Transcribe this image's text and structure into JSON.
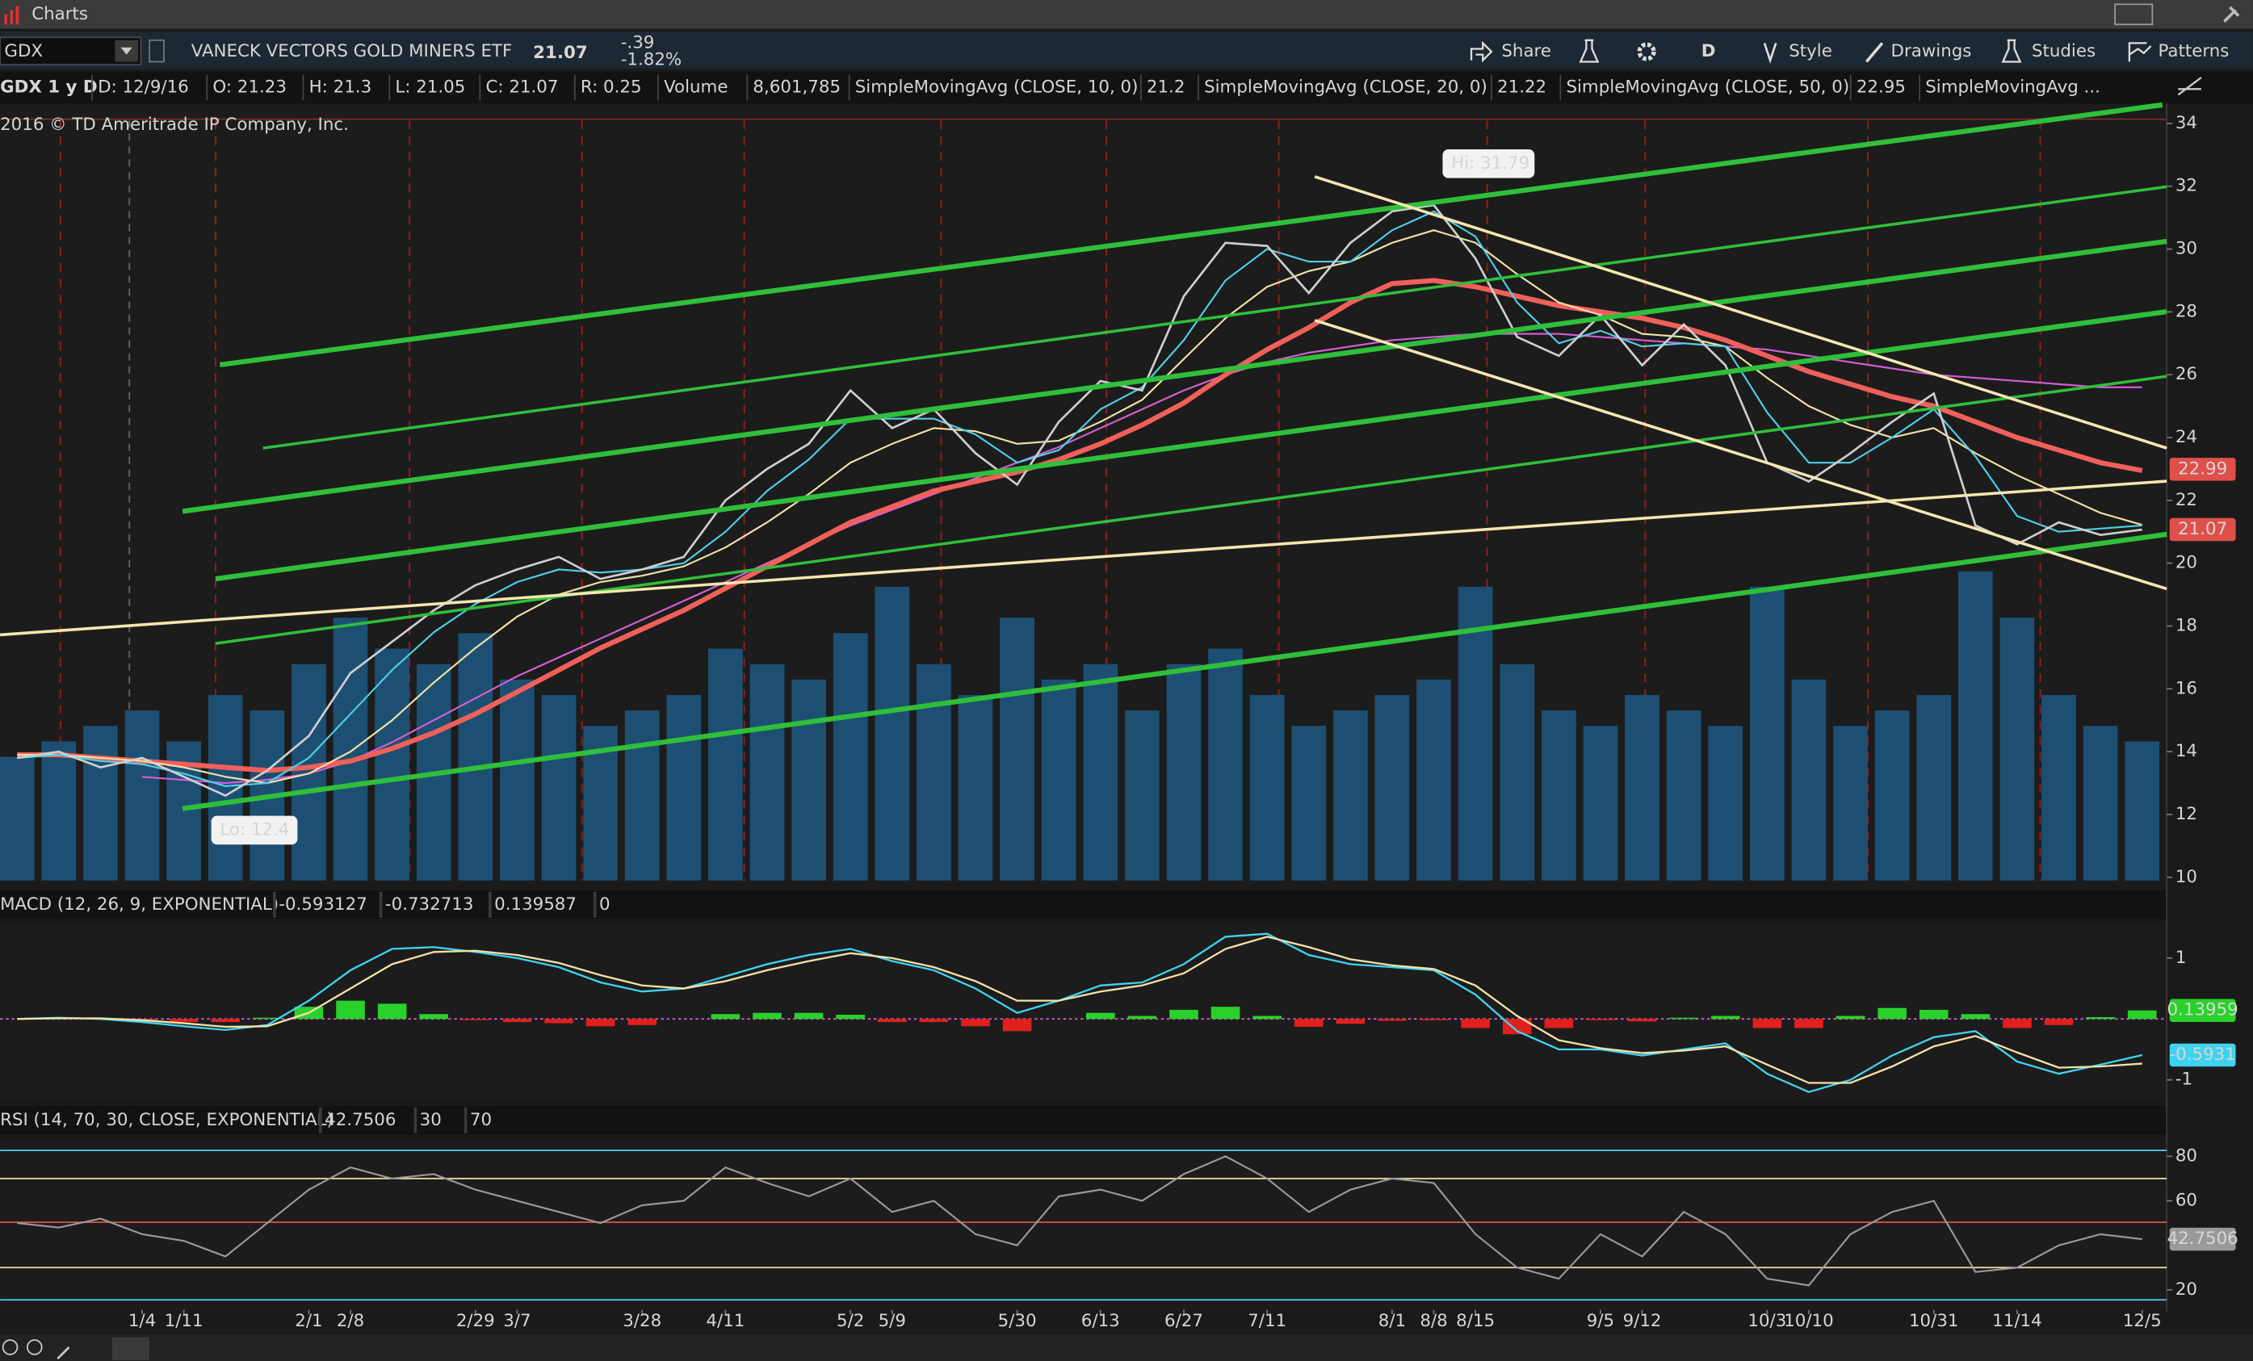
{
  "window": {
    "title": "Charts"
  },
  "toolbar": {
    "symbol": "GDX",
    "description": "VANECK VECTORS GOLD MINERS ETF",
    "last": "21.07",
    "change": "-.39",
    "change_pct": "-1.82%",
    "buttons": [
      "Share",
      "D",
      "Style",
      "Drawings",
      "Studies",
      "Patterns"
    ]
  },
  "info": {
    "chart_label": "GDX 1 y D",
    "fields": [
      "D: 12/9/16",
      "O: 21.23",
      "H: 21.3",
      "L: 21.05",
      "C: 21.07",
      "R: 0.25"
    ],
    "volume_label": "Volume",
    "volume_value": "8,601,785"
  },
  "copyright": "2016 © TD Ameritrade IP Company, Inc.",
  "chart_data": [
    {
      "type": "line",
      "x": [
        -3,
        -2,
        -1,
        0,
        1,
        2,
        3,
        4,
        5,
        6,
        7,
        8,
        9,
        10,
        11,
        12,
        13,
        14,
        15,
        16,
        17,
        18,
        19,
        20,
        21,
        22,
        23,
        24,
        25,
        26,
        27,
        28,
        29,
        30,
        31,
        32,
        33,
        34,
        35,
        36,
        37,
        38,
        39,
        40,
        41,
        42,
        43,
        44,
        45,
        46,
        47,
        48
      ],
      "xlim": [
        -3.41,
        48.59
      ],
      "xticks": [
        {
          "value": 0,
          "label": "1/4"
        },
        {
          "value": 1,
          "label": "1/11"
        },
        {
          "value": 4,
          "label": "2/1"
        },
        {
          "value": 5,
          "label": "2/8"
        },
        {
          "value": 8,
          "label": "2/29"
        },
        {
          "value": 9,
          "label": "3/7"
        },
        {
          "value": 12,
          "label": "3/28"
        },
        {
          "value": 14,
          "label": "4/11"
        },
        {
          "value": 17,
          "label": "5/2"
        },
        {
          "value": 18,
          "label": "5/9"
        },
        {
          "value": 21,
          "label": "5/30"
        },
        {
          "value": 23,
          "label": "6/13"
        },
        {
          "value": 25,
          "label": "6/27"
        },
        {
          "value": 27,
          "label": "7/11"
        },
        {
          "value": 30,
          "label": "8/1"
        },
        {
          "value": 31,
          "label": "8/8"
        },
        {
          "value": 32,
          "label": "8/15"
        },
        {
          "value": 35,
          "label": "9/5"
        },
        {
          "value": 36,
          "label": "9/12"
        },
        {
          "value": 39,
          "label": "10/3"
        },
        {
          "value": 40,
          "label": "10/10"
        },
        {
          "value": 43,
          "label": "10/31"
        },
        {
          "value": 45,
          "label": "11/14"
        },
        {
          "value": 48,
          "label": "12/5"
        }
      ],
      "ylim": [
        9.9,
        34.5
      ],
      "yticks": [
        10,
        12,
        14,
        16,
        18,
        20,
        22,
        24,
        26,
        28,
        30,
        32,
        34
      ],
      "close": {
        "color": "#cfcfcf",
        "values": [
          13.8,
          14.0,
          13.5,
          13.8,
          13.2,
          12.6,
          13.4,
          14.5,
          16.5,
          17.5,
          18.5,
          19.3,
          19.8,
          20.2,
          19.5,
          19.8,
          20.2,
          22.0,
          23.0,
          23.8,
          25.5,
          24.3,
          24.9,
          23.5,
          22.5,
          24.5,
          25.8,
          25.5,
          28.5,
          30.2,
          30.1,
          28.6,
          30.2,
          31.2,
          31.4,
          29.7,
          27.2,
          26.6,
          27.9,
          26.3,
          27.6,
          26.3,
          23.2,
          22.6,
          23.5,
          24.5,
          25.4,
          21.2,
          20.6,
          21.3,
          20.9,
          21.07
        ]
      },
      "volume": {
        "color": "#1d4f73",
        "ylim": [
          0,
          250
        ],
        "values": [
          40,
          45,
          50,
          55,
          45,
          60,
          55,
          70,
          85,
          75,
          70,
          80,
          65,
          60,
          50,
          55,
          60,
          75,
          70,
          65,
          80,
          95,
          70,
          60,
          85,
          65,
          70,
          55,
          70,
          75,
          60,
          50,
          55,
          60,
          65,
          95,
          70,
          55,
          50,
          60,
          55,
          50,
          95,
          65,
          50,
          55,
          60,
          100,
          85,
          60,
          50,
          45
        ]
      },
      "series": [
        {
          "name": "SimpleMovingAvg ...",
          "color": "#d45fd4",
          "width": 1.2,
          "values": [
            null,
            null,
            null,
            13.2,
            13.1,
            13.0,
            13.1,
            13.3,
            13.7,
            14.3,
            15.0,
            15.7,
            16.4,
            17.0,
            17.6,
            18.2,
            18.8,
            19.4,
            20.0,
            20.6,
            21.2,
            21.7,
            22.2,
            22.7,
            23.2,
            23.7,
            24.3,
            24.9,
            25.5,
            26.0,
            26.4,
            26.7,
            26.9,
            27.1,
            27.2,
            27.3,
            27.3,
            27.3,
            27.2,
            27.1,
            27.0,
            26.9,
            26.8,
            26.6,
            26.4,
            26.2,
            26.0,
            25.9,
            25.8,
            25.7,
            25.6,
            25.6
          ]
        },
        {
          "name": "SimpleMovingAvg (CLOSE, 50, 0)",
          "last": "22.95",
          "color": "#f0605a",
          "width": 3.5,
          "values": [
            13.9,
            13.9,
            13.8,
            13.7,
            13.6,
            13.5,
            13.4,
            13.5,
            13.7,
            14.1,
            14.6,
            15.2,
            15.9,
            16.6,
            17.3,
            17.9,
            18.5,
            19.2,
            19.9,
            20.6,
            21.3,
            21.8,
            22.3,
            22.6,
            22.9,
            23.3,
            23.8,
            24.4,
            25.1,
            26.0,
            26.8,
            27.5,
            28.3,
            28.9,
            29.0,
            28.8,
            28.5,
            28.2,
            28.0,
            27.8,
            27.5,
            27.1,
            26.6,
            26.1,
            25.7,
            25.3,
            25.0,
            24.5,
            24.0,
            23.6,
            23.2,
            22.95
          ]
        },
        {
          "name": "SimpleMovingAvg (CLOSE, 20, 0)",
          "last": "21.22",
          "color": "#f2e2a6",
          "width": 1.2,
          "values": [
            13.9,
            13.9,
            13.8,
            13.7,
            13.5,
            13.2,
            13.0,
            13.3,
            14.0,
            15.0,
            16.2,
            17.3,
            18.3,
            19.0,
            19.4,
            19.6,
            19.9,
            20.5,
            21.3,
            22.2,
            23.2,
            23.8,
            24.3,
            24.2,
            23.8,
            23.9,
            24.5,
            25.2,
            26.5,
            27.8,
            28.8,
            29.3,
            29.6,
            30.2,
            30.6,
            30.2,
            29.2,
            28.3,
            27.9,
            27.3,
            27.2,
            26.9,
            25.9,
            25.0,
            24.4,
            24.0,
            24.3,
            23.5,
            22.8,
            22.2,
            21.6,
            21.22
          ]
        },
        {
          "name": "SimpleMovingAvg (CLOSE, 10, 0)",
          "last": "21.2",
          "color": "#4fcfe8",
          "width": 1.2,
          "values": [
            13.8,
            13.9,
            13.7,
            13.6,
            13.3,
            12.9,
            13.0,
            13.8,
            15.2,
            16.6,
            17.8,
            18.7,
            19.4,
            19.8,
            19.7,
            19.8,
            20.0,
            21.0,
            22.3,
            23.3,
            24.6,
            24.6,
            24.6,
            24.1,
            23.2,
            23.6,
            24.9,
            25.6,
            27.1,
            29.0,
            30.0,
            29.6,
            29.6,
            30.6,
            31.2,
            30.4,
            28.3,
            27.0,
            27.4,
            26.9,
            27.0,
            26.9,
            24.8,
            23.2,
            23.2,
            24.0,
            24.9,
            23.4,
            21.5,
            21.0,
            21.1,
            21.2
          ]
        }
      ],
      "hi_label": "Hi: 31.79",
      "lo_label": "Lo: 12.4",
      "price_tags": [
        {
          "value": 22.99,
          "color": "#e0504a"
        },
        {
          "value": 21.07,
          "color": "#e0504a"
        }
      ]
    },
    {
      "type": "macd",
      "title": "MACD (12, 26, 9, EXPONENTIAL)",
      "header_values": [
        "-0.593127",
        "-0.732713",
        "0.139587"
      ],
      "zero_line": 0,
      "ylim": [
        -1.31,
        1.52
      ],
      "yticks": [
        1,
        -1
      ],
      "series": [
        {
          "color": "#3fd3f0",
          "values": [
            0.0,
            0.02,
            0.0,
            -0.05,
            -0.12,
            -0.18,
            -0.1,
            0.3,
            0.8,
            1.15,
            1.18,
            1.1,
            1.0,
            0.85,
            0.6,
            0.45,
            0.5,
            0.7,
            0.9,
            1.05,
            1.15,
            0.95,
            0.8,
            0.5,
            0.1,
            0.3,
            0.55,
            0.6,
            0.9,
            1.35,
            1.4,
            1.05,
            0.9,
            0.85,
            0.8,
            0.4,
            -0.2,
            -0.5,
            -0.5,
            -0.6,
            -0.5,
            -0.4,
            -0.9,
            -1.2,
            -1.0,
            -0.6,
            -0.3,
            -0.2,
            -0.7,
            -0.9,
            -0.75,
            -0.593127
          ]
        },
        {
          "color": "#f2e2a6",
          "values": [
            0.0,
            0.01,
            0.01,
            -0.02,
            -0.07,
            -0.13,
            -0.12,
            0.1,
            0.5,
            0.9,
            1.1,
            1.12,
            1.05,
            0.92,
            0.72,
            0.55,
            0.5,
            0.62,
            0.8,
            0.95,
            1.08,
            1.0,
            0.85,
            0.62,
            0.3,
            0.3,
            0.45,
            0.55,
            0.75,
            1.15,
            1.35,
            1.18,
            0.98,
            0.88,
            0.82,
            0.55,
            0.05,
            -0.35,
            -0.48,
            -0.56,
            -0.52,
            -0.45,
            -0.75,
            -1.05,
            -1.05,
            -0.78,
            -0.45,
            -0.28,
            -0.55,
            -0.8,
            -0.78,
            -0.732713
          ]
        }
      ],
      "histogram": {
        "up_color": "#2bd12b",
        "down_color": "#e0201c",
        "values": [
          0,
          0.01,
          -0.01,
          -0.03,
          -0.05,
          -0.05,
          0.02,
          0.2,
          0.3,
          0.25,
          0.08,
          -0.02,
          -0.05,
          -0.07,
          -0.12,
          -0.1,
          0,
          0.08,
          0.1,
          0.1,
          0.07,
          -0.05,
          -0.05,
          -0.12,
          -0.2,
          0,
          0.1,
          0.05,
          0.15,
          0.2,
          0.05,
          -0.13,
          -0.08,
          -0.03,
          -0.02,
          -0.15,
          -0.25,
          -0.15,
          -0.02,
          -0.04,
          0.02,
          0.05,
          -0.15,
          -0.15,
          0.05,
          0.18,
          0.15,
          0.08,
          -0.15,
          -0.1,
          0.03,
          0.139587
        ]
      },
      "badges": [
        {
          "value": 0.13959,
          "color": "#2bd12b"
        },
        {
          "value": -0.5931,
          "color": "#3fd3f0"
        }
      ]
    },
    {
      "type": "rsi",
      "title": "RSI (14, 70, 30, CLOSE, EXPONENTIAL)",
      "header_value": "42.7506",
      "oversold": 30,
      "overbought": 70,
      "ylim": [
        11,
        86.5
      ],
      "yticks": [
        20,
        60,
        80
      ],
      "series": [
        {
          "color": "#9a9a9a",
          "values": [
            50,
            48,
            52,
            45,
            42,
            35,
            50,
            65,
            75,
            70,
            72,
            65,
            60,
            55,
            50,
            58,
            60,
            75,
            68,
            62,
            70,
            55,
            60,
            45,
            40,
            62,
            65,
            60,
            72,
            80,
            70,
            55,
            65,
            70,
            68,
            45,
            30,
            25,
            45,
            35,
            55,
            45,
            25,
            22,
            45,
            55,
            60,
            28,
            30,
            40,
            45,
            42.7506
          ]
        }
      ],
      "badges": [
        {
          "value": 42.7506,
          "color": "#9a9a9a"
        }
      ]
    }
  ]
}
